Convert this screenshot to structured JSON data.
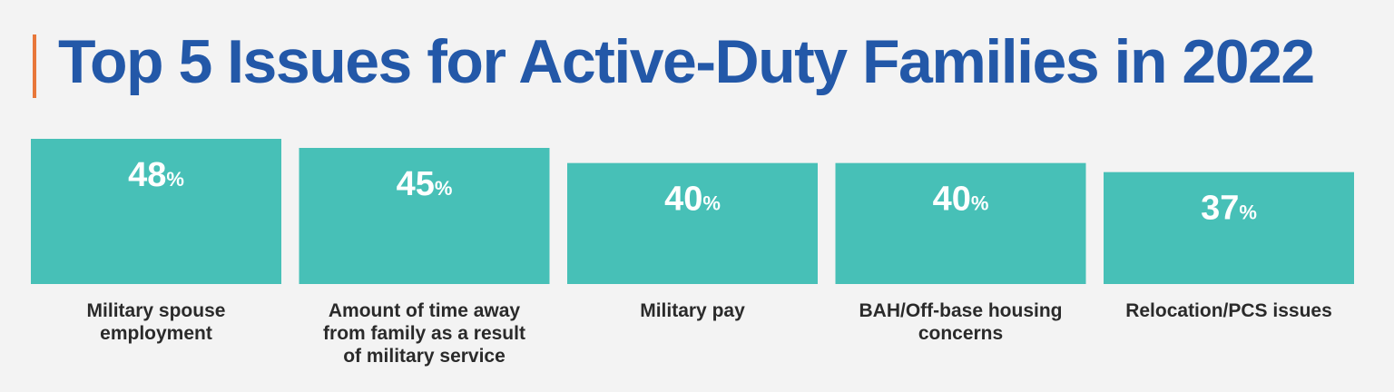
{
  "title": "Top 5 Issues for Active-Duty Families in 2022",
  "colors": {
    "accent": "#e8773a",
    "title": "#2358a8",
    "bar": "#47c0b7",
    "label": "#2a2a2a",
    "background": "#f3f3f3"
  },
  "chart_data": {
    "type": "bar",
    "title": "Top 5 Issues for Active-Duty Families in 2022",
    "categories": [
      [
        "Military spouse",
        "employment"
      ],
      [
        "Amount of time away",
        "from family as a result",
        "of military service"
      ],
      [
        "Military pay"
      ],
      [
        "BAH/Off-base housing",
        "concerns"
      ],
      [
        "Relocation/PCS issues"
      ]
    ],
    "values": [
      48,
      45,
      40,
      40,
      37
    ],
    "value_unit": "%",
    "xlabel": "",
    "ylabel": "",
    "grid": false
  }
}
